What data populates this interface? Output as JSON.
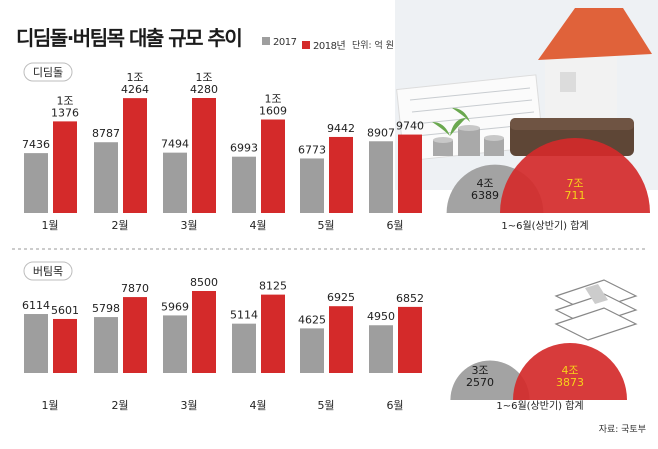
{
  "title": "디딤돌·버팀목 대출 규모 추이",
  "unit": "단위: 억 원",
  "source": "자료: 국토부",
  "legend": [
    {
      "name": "2017",
      "color": "#9e9e9e"
    },
    {
      "name": "2018년",
      "color": "#d42a2a"
    }
  ],
  "chart_data": [
    {
      "type": "bar",
      "title": "디딤돌",
      "categories": [
        "1월",
        "2월",
        "3월",
        "4월",
        "5월",
        "6월"
      ],
      "series": [
        {
          "name": "2017",
          "values": [
            7436,
            8787,
            7494,
            6993,
            6773,
            8907
          ],
          "labels": [
            "7436",
            "8787",
            "7494",
            "6993",
            "6773",
            "8907"
          ]
        },
        {
          "name": "2018년",
          "values": [
            11376,
            14264,
            14280,
            11609,
            9442,
            9740
          ],
          "labels": [
            "1조\n1376",
            "1조\n4264",
            "1조\n4280",
            "1조\n1609",
            "9442",
            "9740"
          ]
        }
      ],
      "total": {
        "label": "1~6월(상반기) 합계",
        "values": [
          46389,
          70711
        ],
        "labels": [
          "4조\n6389",
          "7조\n711"
        ]
      }
    },
    {
      "type": "bar",
      "title": "버팀목",
      "categories": [
        "1월",
        "2월",
        "3월",
        "4월",
        "5월",
        "6월"
      ],
      "series": [
        {
          "name": "2017",
          "values": [
            6114,
            5798,
            5969,
            5114,
            4625,
            4950
          ],
          "labels": [
            "6114",
            "5798",
            "5969",
            "5114",
            "4625",
            "4950"
          ]
        },
        {
          "name": "2018년",
          "values": [
            5601,
            7870,
            8500,
            8125,
            6925,
            6852
          ],
          "labels": [
            "5601",
            "7870",
            "8500",
            "8125",
            "6925",
            "6852"
          ]
        }
      ],
      "total": {
        "label": "1~6월(상반기) 합계",
        "values": [
          32570,
          43873
        ],
        "labels": [
          "3조\n2570",
          "4조\n3873"
        ]
      }
    }
  ]
}
